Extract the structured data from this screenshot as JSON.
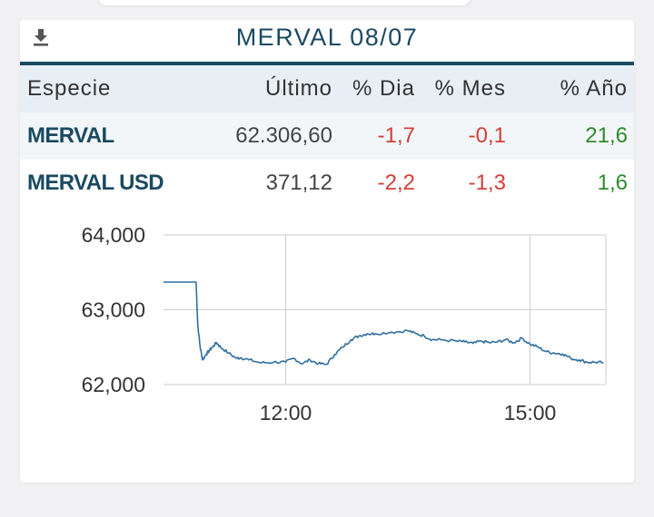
{
  "header": {
    "title": "MERVAL 08/07",
    "download_icon": "download-icon"
  },
  "table": {
    "columns": [
      "Especie",
      "Último",
      "% Dia",
      "% Mes",
      "% Año"
    ],
    "rows": [
      {
        "especie": "MERVAL",
        "ultimo": "62.306,60",
        "dia": "-1,7",
        "mes": "-0,1",
        "anio": "21,6"
      },
      {
        "especie": "MERVAL USD",
        "ultimo": "371,12",
        "dia": "-2,2",
        "mes": "-1,3",
        "anio": "1,6"
      }
    ]
  },
  "colors": {
    "accent": "#1a4a62",
    "negative": "#d43f3a",
    "positive": "#2e8b2e",
    "line": "#2f6f9f"
  },
  "chart_data": {
    "type": "line",
    "title": "",
    "xlabel": "",
    "ylabel": "",
    "ylim": [
      62000,
      64000
    ],
    "yticks": [
      "64,000",
      "63,000",
      "62,000"
    ],
    "yticks_values": [
      64000,
      63000,
      62000
    ],
    "xticks": [
      "12:00",
      "15:00"
    ],
    "xticks_hours": [
      12,
      15
    ],
    "xlim_hours": [
      10.5,
      15.93
    ],
    "grid": true,
    "series": [
      {
        "x": [
          10.5,
          10.6,
          10.7,
          10.9,
          10.92,
          10.95,
          10.98,
          11.02,
          11.06,
          11.1,
          11.15,
          11.2,
          11.3,
          11.4,
          11.45,
          11.55,
          11.7,
          11.85,
          12.0,
          12.1,
          12.2,
          12.3,
          12.4,
          12.5,
          12.6,
          12.7,
          12.8,
          12.9,
          13.0,
          13.1,
          13.3,
          13.5,
          13.6,
          13.7,
          13.8,
          13.9,
          14.1,
          14.2,
          14.3,
          14.4,
          14.5,
          14.6,
          14.7,
          14.8,
          14.9,
          15.0,
          15.1,
          15.2,
          15.3,
          15.4,
          15.5,
          15.6,
          15.7,
          15.8,
          15.9
        ],
        "y": [
          63370,
          63370,
          63370,
          63370,
          62800,
          62500,
          62330,
          62400,
          62450,
          62500,
          62560,
          62500,
          62420,
          62350,
          62360,
          62330,
          62290,
          62300,
          62300,
          62350,
          62280,
          62330,
          62280,
          62270,
          62400,
          62500,
          62600,
          62650,
          62680,
          62680,
          62700,
          62720,
          62680,
          62650,
          62600,
          62600,
          62580,
          62570,
          62550,
          62580,
          62560,
          62570,
          62600,
          62560,
          62620,
          62540,
          62500,
          62440,
          62420,
          62410,
          62350,
          62330,
          62300,
          62300,
          62290
        ]
      }
    ]
  }
}
